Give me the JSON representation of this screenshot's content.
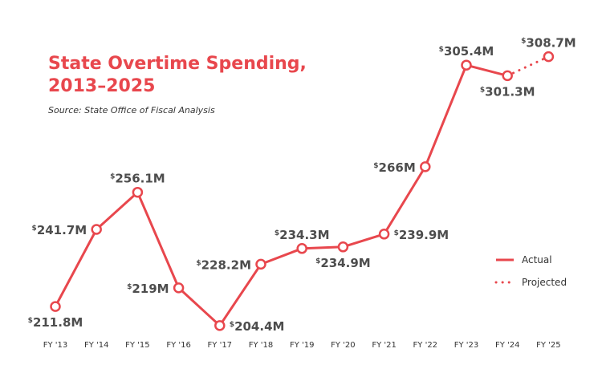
{
  "chart_data": {
    "type": "line",
    "title_lines": [
      "State Overtime Spending,",
      "2013–2025"
    ],
    "subtitle": "Source: State Office of Fiscal Analysis",
    "categories": [
      "FY '13",
      "FY '14",
      "FY '15",
      "FY '16",
      "FY '17",
      "FY '18",
      "FY '19",
      "FY '20",
      "FY '21",
      "FY '22",
      "FY '23",
      "FY '24",
      "FY '25"
    ],
    "unit": "millions of dollars",
    "series": [
      {
        "name": "Actual",
        "style": "solid",
        "values": [
          211.8,
          241.7,
          256.1,
          219.0,
          204.4,
          228.2,
          234.3,
          234.9,
          239.9,
          266.0,
          305.4,
          301.3,
          null
        ]
      },
      {
        "name": "Projected",
        "style": "dotted",
        "values": [
          null,
          null,
          null,
          null,
          null,
          null,
          null,
          null,
          null,
          null,
          null,
          301.3,
          308.7
        ]
      }
    ],
    "point_labels": [
      "211.8M",
      "241.7M",
      "256.1M",
      "219M",
      "204.4M",
      "228.2M",
      "234.3M",
      "234.9M",
      "239.9M",
      "266M",
      "305.4M",
      "301.3M",
      "308.7M"
    ],
    "label_prefix": "$",
    "label_placement": [
      "below",
      "left",
      "above",
      "left",
      "right",
      "left",
      "above",
      "below",
      "right",
      "left",
      "above",
      "below",
      "above"
    ],
    "ylim": [
      200,
      312
    ],
    "grid": false,
    "legend_position": "right",
    "colors": {
      "line": "#e8474d",
      "marker_fill": "#ffffff",
      "title": "#e8474d",
      "label": "#4d4d4d"
    }
  }
}
